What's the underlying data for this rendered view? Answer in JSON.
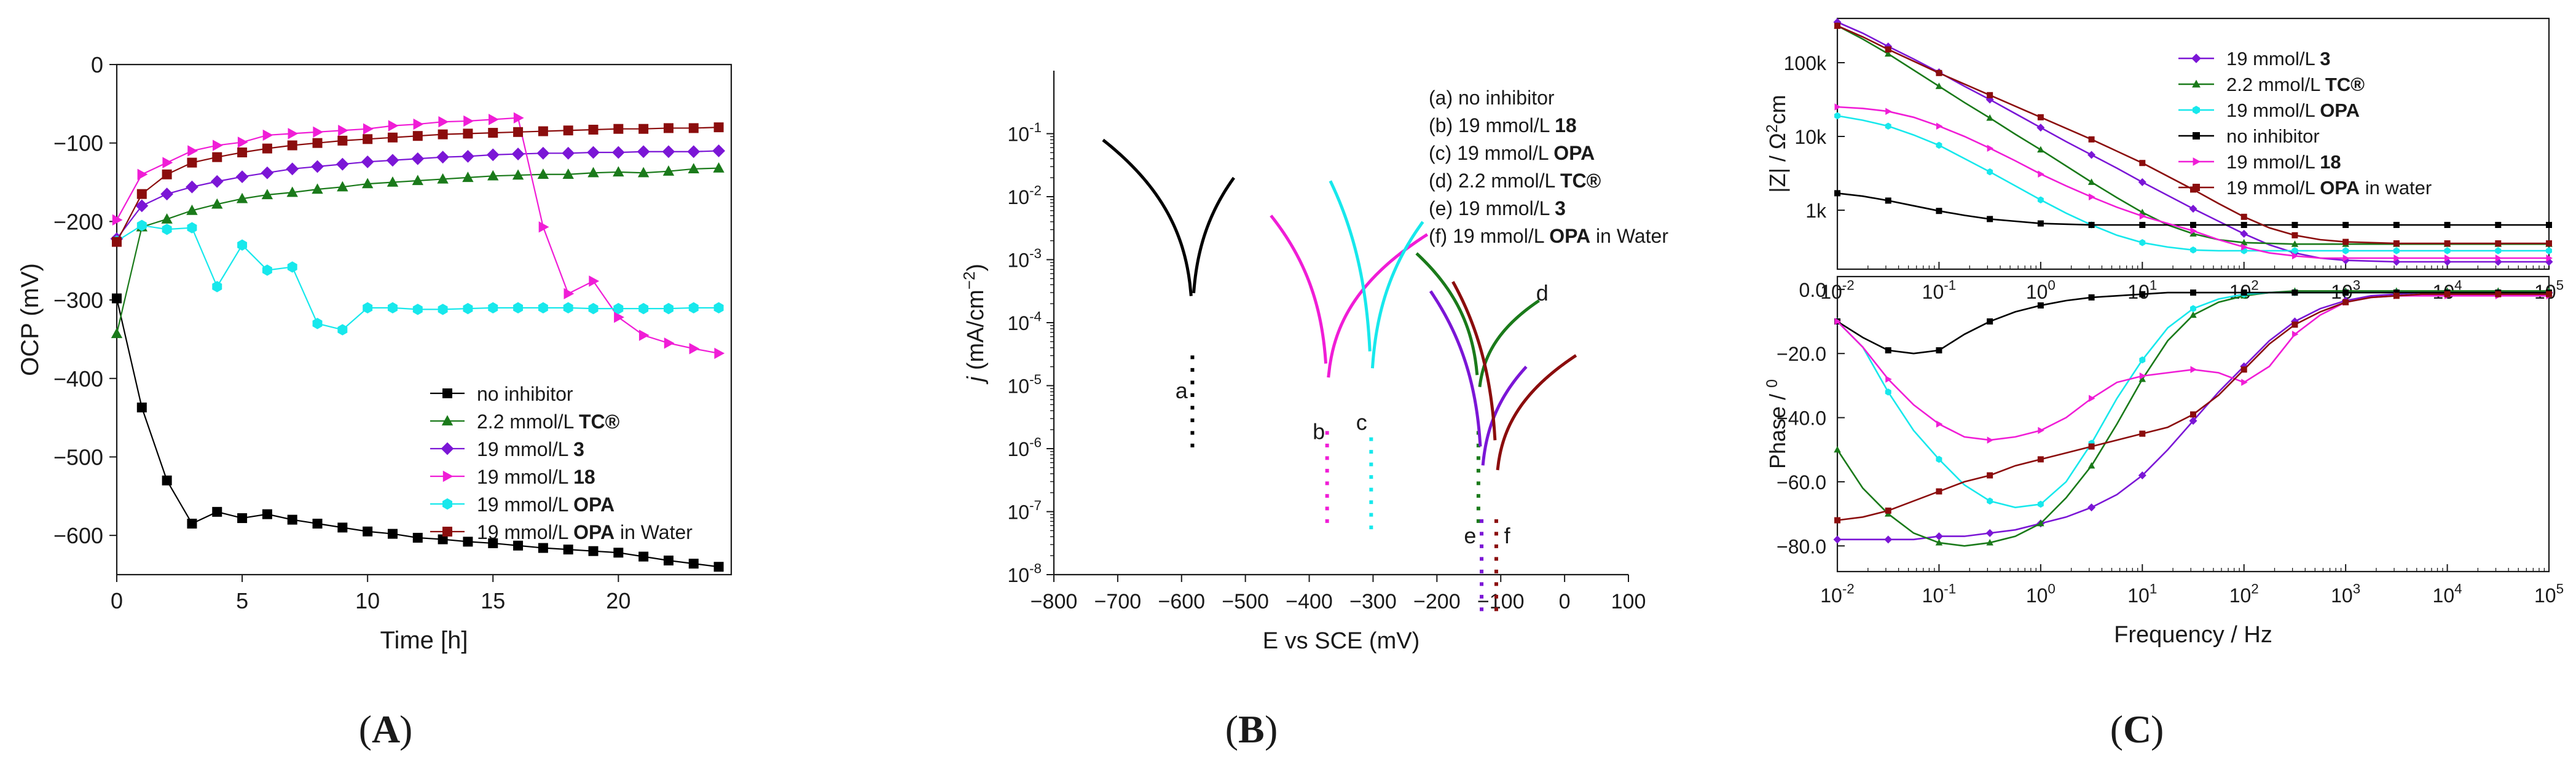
{
  "chart_data": [
    {
      "id": "A",
      "type": "line",
      "panel_label": "A",
      "xlabel": "Time [h]",
      "ylabel": "OCP (mV)",
      "xlim": [
        0,
        24.5
      ],
      "ylim": [
        -650,
        0
      ],
      "xticks": [
        0,
        5,
        10,
        15,
        20
      ],
      "yticks": [
        0,
        -100,
        -200,
        -300,
        -400,
        -500,
        -600
      ],
      "series": [
        {
          "name": "no inhibitor",
          "bold": "",
          "color": "#000000",
          "marker": "square",
          "x": [
            0,
            1,
            2,
            3,
            4,
            5,
            6,
            7,
            8,
            9,
            10,
            11,
            12,
            13,
            14,
            15,
            16,
            17,
            18,
            19,
            20,
            21,
            22,
            23,
            24
          ],
          "y": [
            -298,
            -437,
            -530,
            -585,
            -570,
            -578,
            -573,
            -580,
            -585,
            -590,
            -595,
            -598,
            -603,
            -605,
            -608,
            -610,
            -613,
            -616,
            -618,
            -620,
            -622,
            -627,
            -632,
            -636,
            -640
          ]
        },
        {
          "name": "2.2 mmol/L ",
          "bold": "TC®",
          "color": "#1a7a1a",
          "marker": "triangle",
          "x": [
            0,
            1,
            2,
            3,
            4,
            5,
            6,
            7,
            8,
            9,
            10,
            11,
            12,
            13,
            14,
            15,
            16,
            17,
            18,
            19,
            20,
            21,
            22,
            23,
            24
          ],
          "y": [
            -343,
            -207,
            -197,
            -186,
            -178,
            -171,
            -166,
            -163,
            -159,
            -156,
            -152,
            -150,
            -148,
            -146,
            -144,
            -142,
            -141,
            -140,
            -140,
            -138,
            -137,
            -138,
            -136,
            -133,
            -132
          ]
        },
        {
          "name": "19 mmol/L ",
          "bold": "3",
          "color": "#7b16d6",
          "marker": "diamond",
          "x": [
            0,
            1,
            2,
            3,
            4,
            5,
            6,
            7,
            8,
            9,
            10,
            11,
            12,
            13,
            14,
            15,
            16,
            17,
            18,
            19,
            20,
            21,
            22,
            23,
            24
          ],
          "y": [
            -222,
            -180,
            -165,
            -156,
            -149,
            -143,
            -138,
            -133,
            -130,
            -127,
            -124,
            -122,
            -120,
            -118,
            -117,
            -115,
            -114,
            -113,
            -113,
            -112,
            -112,
            -111,
            -111,
            -111,
            -110
          ]
        },
        {
          "name": "19 mmol/L ",
          "bold": "18",
          "color": "#f01dd6",
          "marker": "triangleRight",
          "x": [
            0,
            1,
            2,
            3,
            4,
            5,
            6,
            7,
            8,
            9,
            10,
            11,
            12,
            13,
            14,
            15,
            16,
            17,
            18,
            19,
            20,
            21,
            22,
            23,
            24
          ],
          "y": [
            -198,
            -140,
            -125,
            -110,
            -103,
            -99,
            -90,
            -88,
            -86,
            -84,
            -82,
            -78,
            -76,
            -73,
            -72,
            -70,
            -68,
            -207,
            -292,
            -276,
            -322,
            -345,
            -355,
            -362,
            -368
          ]
        },
        {
          "name": "19 mmol/L ",
          "bold": "OPA",
          "color": "#17e8ec",
          "marker": "hexagon",
          "x": [
            0,
            1,
            2,
            3,
            4,
            5,
            6,
            7,
            8,
            9,
            10,
            11,
            12,
            13,
            14,
            15,
            16,
            17,
            18,
            19,
            20,
            21,
            22,
            23,
            24
          ],
          "y": [
            -225,
            -205,
            -210,
            -208,
            -283,
            -230,
            -262,
            -258,
            -330,
            -338,
            -310,
            -310,
            -312,
            -312,
            -311,
            -310,
            -310,
            -310,
            -310,
            -311,
            -311,
            -311,
            -311,
            -310,
            -310
          ]
        },
        {
          "name": "19 mmol/L ",
          "bold": "OPA",
          "suffix": " in Water",
          "color": "#8b0d0d",
          "marker": "square",
          "x": [
            0,
            1,
            2,
            3,
            4,
            5,
            6,
            7,
            8,
            9,
            10,
            11,
            12,
            13,
            14,
            15,
            16,
            17,
            18,
            19,
            20,
            21,
            22,
            23,
            24
          ],
          "y": [
            -226,
            -165,
            -140,
            -125,
            -118,
            -112,
            -107,
            -103,
            -100,
            -97,
            -95,
            -93,
            -91,
            -89,
            -88,
            -87,
            -86,
            -85,
            -84,
            -83,
            -82,
            -82,
            -81,
            -81,
            -80
          ]
        }
      ]
    },
    {
      "id": "B",
      "type": "line",
      "panel_label": "B",
      "xlabel": "E vs SCE (mV)",
      "ylabel_j": "j",
      "ylabel_rest": " (mA/cm",
      "ylabel_sup": "−2",
      "ylabel_end": ")",
      "xlim": [
        -800,
        100
      ],
      "ylim_log10": [
        -8,
        0
      ],
      "xticks": [
        -800,
        -700,
        -600,
        -500,
        -400,
        -300,
        -200,
        -100,
        0,
        100
      ],
      "ytick_labels": [
        "10",
        "10",
        "10",
        "10",
        "10",
        "10",
        "10",
        "10"
      ],
      "ytick_exps": [
        "-1",
        "-2",
        "-3",
        "-4",
        "-5",
        "-6",
        "-7",
        "-8"
      ],
      "ytick_values_log10": [
        -1,
        -2,
        -3,
        -4,
        -5,
        -6,
        -7,
        -8
      ],
      "legend": [
        {
          "text": "(a) no inhibitor",
          "bold": ""
        },
        {
          "text": "(b) 19 mmol/L ",
          "bold": "18"
        },
        {
          "text": "(c) 19 mmol/L ",
          "bold": "OPA"
        },
        {
          "text": "(d) 2.2 mmol/L ",
          "bold": "TC®"
        },
        {
          "text": "(e) 19 mmol/L ",
          "bold": "3"
        },
        {
          "text": "(f) 19 mmol/L ",
          "bold": "OPA",
          "suffix": " in Water"
        }
      ],
      "curves": [
        {
          "label": "a",
          "color": "#000000",
          "Ecorr": -583,
          "logJcorr": -4.3,
          "E_start": -723,
          "E_end": -518,
          "logJ_start": -1.1,
          "logJ_end": -1.7,
          "plateau": -1.7,
          "label_E": -600,
          "label_logJ": -5.2
        },
        {
          "label": "b",
          "color": "#f01dd6",
          "Ecorr": -372,
          "logJcorr": -5.5,
          "E_start": -460,
          "E_end": -215,
          "logJ_start": -2.3,
          "logJ_end": -2.6,
          "plateau": -2.7,
          "label_E": -385,
          "label_logJ": -5.85
        },
        {
          "label": "c",
          "color": "#17e8ec",
          "Ecorr": -303,
          "logJcorr": -5.6,
          "E_start": -367,
          "E_end": -222,
          "logJ_start": -1.75,
          "logJ_end": -2.4,
          "plateau": -2.5,
          "label_E": -318,
          "label_logJ": -5.7
        },
        {
          "label": "d",
          "color": "#1a7a1a",
          "Ecorr": -135,
          "logJcorr": -5.5,
          "E_start": -232,
          "E_end": -40,
          "logJ_start": -2.9,
          "logJ_end": -3.65,
          "plateau": -3.0,
          "label_E": -35,
          "label_logJ": -3.65
        },
        {
          "label": "e",
          "color": "#7b16d6",
          "Ecorr": -130,
          "logJcorr": -6.9,
          "E_start": -210,
          "E_end": -60,
          "logJ_start": -3.5,
          "logJ_end": -4.7,
          "plateau": -4.0,
          "label_E": -148,
          "label_logJ": -7.5
        },
        {
          "label": "f",
          "color": "#8b0d0d",
          "Ecorr": -107,
          "logJcorr": -6.9,
          "E_start": -175,
          "E_end": 18,
          "logJ_start": -3.35,
          "logJ_end": -4.52,
          "plateau": -3.6,
          "label_E": -90,
          "label_logJ": -7.5
        }
      ]
    },
    {
      "id": "C",
      "type": "line",
      "panel_label": "C",
      "xlabel": "Frequency / Hz",
      "ylabel_top": "|Z| / Ω",
      "ylabel_top_sup": "2",
      "ylabel_top_end": "cm",
      "ylabel_bottom": "Phase / ",
      "ylabel_bottom_sup": "0",
      "xlim_log10": [
        -2,
        5
      ],
      "xtick_labels": [
        "10",
        "10",
        "10",
        "10",
        "10",
        "10",
        "10",
        "10"
      ],
      "xtick_exps": [
        "-2",
        "-1",
        "0",
        "1",
        "2",
        "3",
        "4",
        "5"
      ],
      "xtick_values_log10": [
        -2,
        -1,
        0,
        1,
        2,
        3,
        4,
        5
      ],
      "top_yticks": [
        "100k",
        "10k",
        "1k"
      ],
      "top_ytick_values_log10": [
        5,
        4,
        3
      ],
      "top_ylim_log10": [
        2.2,
        5.6
      ],
      "bottom_yticks": [
        "0.0",
        "-20.0",
        "-40.0",
        "-60.0",
        "-80.0"
      ],
      "bottom_ytick_values": [
        0,
        -20,
        -40,
        -60,
        -80
      ],
      "bottom_ylim": [
        -88,
        4
      ],
      "x_log10": [
        -2.0,
        -1.75,
        -1.5,
        -1.25,
        -1.0,
        -0.75,
        -0.5,
        -0.25,
        0.0,
        0.25,
        0.5,
        0.75,
        1.0,
        1.25,
        1.5,
        1.75,
        2.0,
        2.25,
        2.5,
        2.75,
        3.0,
        3.25,
        3.5,
        3.75,
        4.0,
        4.25,
        4.5,
        4.75,
        5.0
      ],
      "series": [
        {
          "name": "19 mmol/L ",
          "bold": "3",
          "color": "#7b16d6",
          "marker": "diamond",
          "logZ": [
            5.55,
            5.4,
            5.22,
            5.05,
            4.87,
            4.68,
            4.5,
            4.31,
            4.12,
            3.93,
            3.75,
            3.57,
            3.38,
            3.2,
            3.02,
            2.85,
            2.68,
            2.53,
            2.42,
            2.35,
            2.32,
            2.31,
            2.3,
            2.3,
            2.3,
            2.3,
            2.3,
            2.3,
            2.3
          ],
          "phase": [
            -78,
            -78,
            -78,
            -78,
            -77,
            -77,
            -76,
            -75,
            -73,
            -71,
            -68,
            -64,
            -58,
            -50,
            -41,
            -32,
            -24,
            -16,
            -10,
            -6,
            -3.5,
            -2,
            -1.5,
            -1,
            -1,
            -1,
            -1,
            -1,
            -1
          ]
        },
        {
          "name": "2.2 mmol/L ",
          "bold": "TC®",
          "color": "#1a7a1a",
          "marker": "triangle",
          "logZ": [
            5.5,
            5.32,
            5.12,
            4.9,
            4.68,
            4.46,
            4.25,
            4.03,
            3.82,
            3.6,
            3.38,
            3.17,
            2.97,
            2.8,
            2.68,
            2.6,
            2.56,
            2.55,
            2.54,
            2.54,
            2.54,
            2.54,
            2.54,
            2.54,
            2.54,
            2.54,
            2.54,
            2.54,
            2.54
          ],
          "phase": [
            -50,
            -62,
            -70,
            -76,
            -79,
            -80,
            -79,
            -77,
            -73,
            -65,
            -55,
            -42,
            -28,
            -16,
            -8,
            -4,
            -2,
            -1,
            -0.5,
            -0.5,
            -0.5,
            -0.5,
            -0.5,
            -0.5,
            -0.5,
            -0.5,
            -0.5,
            -0.5,
            -0.5
          ]
        },
        {
          "name": "19 mmol/L ",
          "bold": "OPA",
          "color": "#17e8ec",
          "marker": "hexagon",
          "logZ": [
            4.28,
            4.22,
            4.14,
            4.02,
            3.88,
            3.7,
            3.52,
            3.33,
            3.14,
            2.96,
            2.8,
            2.66,
            2.56,
            2.5,
            2.46,
            2.45,
            2.45,
            2.45,
            2.45,
            2.45,
            2.45,
            2.45,
            2.45,
            2.45,
            2.45,
            2.45,
            2.45,
            2.45,
            2.45
          ],
          "phase": [
            -10,
            -18,
            -32,
            -44,
            -53,
            -61,
            -66,
            -68,
            -67,
            -60,
            -48,
            -34,
            -22,
            -12,
            -6,
            -3,
            -1.5,
            -1,
            -1,
            -1,
            -1,
            -1,
            -1,
            -1,
            -1,
            -1,
            -1,
            -1,
            -1
          ]
        },
        {
          "name": "no inhibitor",
          "bold": "",
          "color": "#000000",
          "marker": "square",
          "logZ": [
            3.23,
            3.19,
            3.13,
            3.06,
            2.99,
            2.93,
            2.88,
            2.85,
            2.82,
            2.81,
            2.8,
            2.8,
            2.8,
            2.8,
            2.8,
            2.8,
            2.8,
            2.8,
            2.8,
            2.8,
            2.8,
            2.8,
            2.8,
            2.8,
            2.8,
            2.8,
            2.8,
            2.8,
            2.8
          ],
          "phase": [
            -10,
            -15,
            -19,
            -20,
            -19,
            -14,
            -10,
            -7,
            -5,
            -3.5,
            -2.5,
            -2,
            -1.5,
            -1,
            -1,
            -1,
            -1,
            -1,
            -1,
            -1,
            -1,
            -1,
            -1,
            -1,
            -1,
            -1,
            -1,
            -1,
            -1
          ]
        },
        {
          "name": "19 mmol/L ",
          "bold": "18",
          "color": "#f01dd6",
          "marker": "triangleRight",
          "logZ": [
            4.4,
            4.38,
            4.34,
            4.26,
            4.14,
            4.0,
            3.84,
            3.67,
            3.49,
            3.33,
            3.18,
            3.04,
            2.92,
            2.82,
            2.72,
            2.6,
            2.5,
            2.42,
            2.38,
            2.35,
            2.35,
            2.35,
            2.35,
            2.35,
            2.35,
            2.35,
            2.35,
            2.35,
            2.35
          ],
          "phase": [
            -10,
            -18,
            -28,
            -36,
            -42,
            -46,
            -47,
            -46,
            -44,
            -40,
            -34,
            -29,
            -27,
            -26,
            -25,
            -26,
            -29,
            -24,
            -14,
            -8,
            -4,
            -2.5,
            -2,
            -2,
            -2,
            -2,
            -2,
            -2,
            -2
          ]
        },
        {
          "name": "19 mmol/L ",
          "bold": "OPA",
          "suffix": " in water",
          "color": "#8b0d0d",
          "marker": "square",
          "logZ": [
            5.5,
            5.35,
            5.18,
            5.02,
            4.86,
            4.71,
            4.56,
            4.41,
            4.26,
            4.11,
            3.96,
            3.8,
            3.64,
            3.46,
            3.28,
            3.09,
            2.91,
            2.76,
            2.66,
            2.6,
            2.57,
            2.56,
            2.55,
            2.55,
            2.55,
            2.55,
            2.55,
            2.55,
            2.55
          ],
          "phase": [
            -72,
            -71,
            -69,
            -66,
            -63,
            -60,
            -58,
            -55,
            -53,
            -51,
            -49,
            -47,
            -45,
            -43,
            -39,
            -33,
            -25,
            -17,
            -11,
            -7,
            -4,
            -2.5,
            -2,
            -1.5,
            -1.5,
            -1.5,
            -1.5,
            -1.5,
            -1.5
          ]
        }
      ]
    }
  ]
}
